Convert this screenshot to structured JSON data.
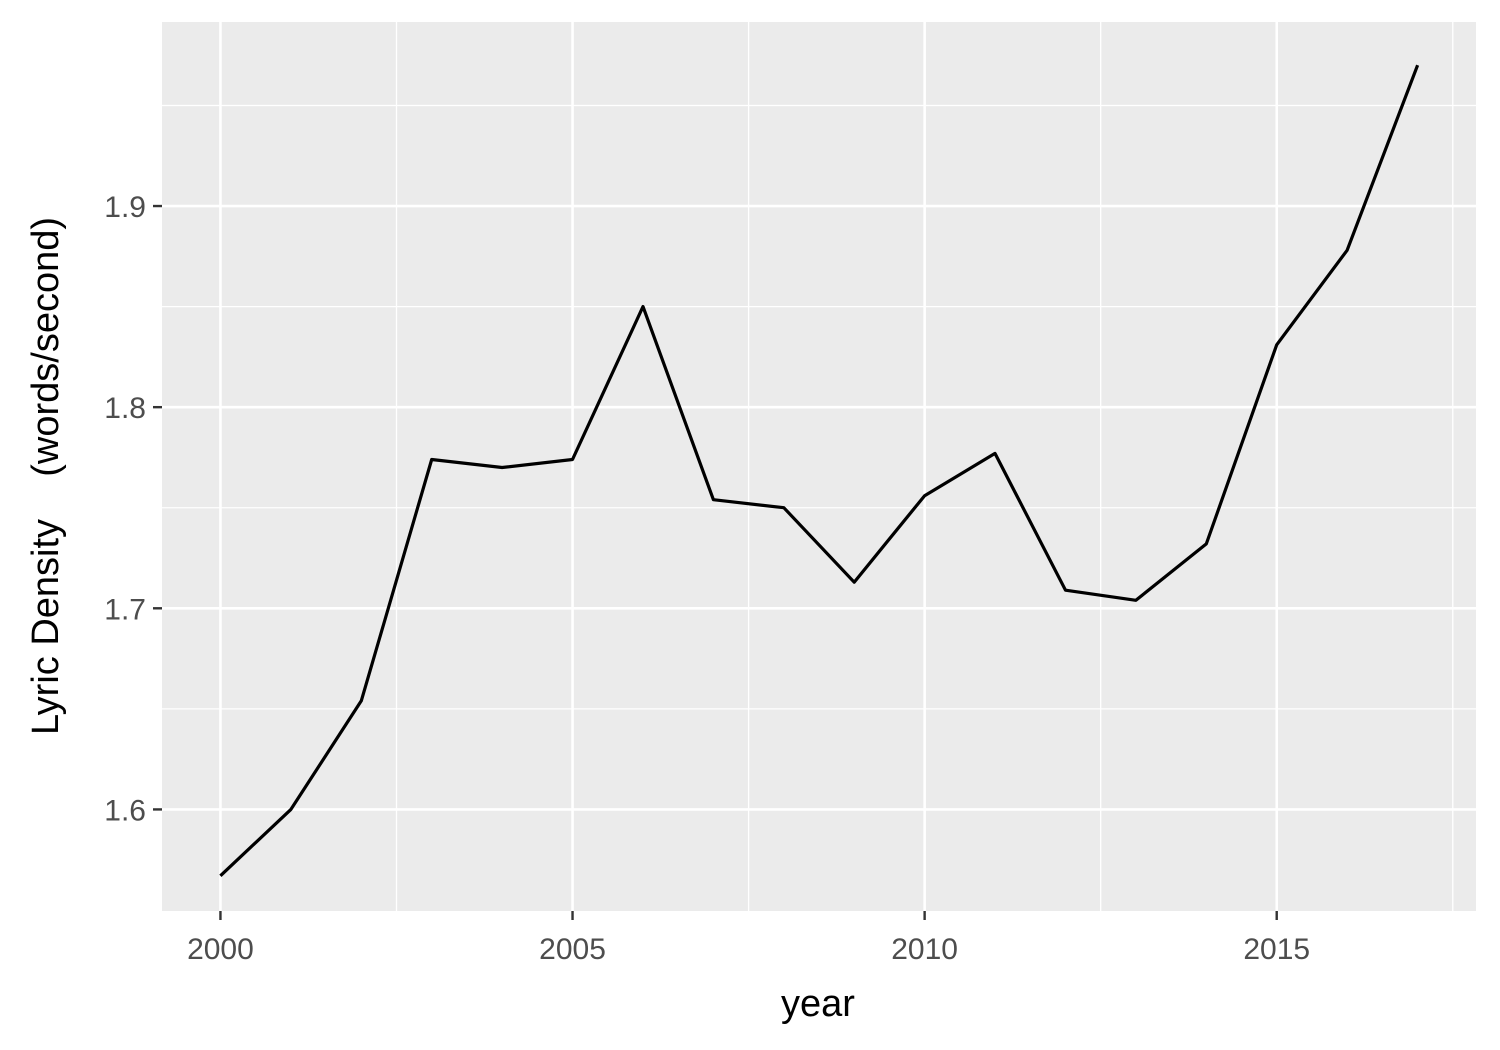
{
  "chart_data": {
    "type": "line",
    "title": "",
    "xlabel": "year",
    "ylabel": "Lyric Density    (words/second)",
    "x": [
      2000,
      2001,
      2002,
      2003,
      2004,
      2005,
      2006,
      2007,
      2008,
      2009,
      2010,
      2011,
      2012,
      2013,
      2014,
      2015,
      2016,
      2017
    ],
    "series": [
      {
        "values": [
          1.567,
          1.6,
          1.654,
          1.774,
          1.77,
          1.774,
          1.85,
          1.754,
          1.75,
          1.713,
          1.756,
          1.777,
          1.709,
          1.704,
          1.732,
          1.831,
          1.878,
          1.97
        ],
        "color": "#000000"
      }
    ],
    "xlim": [
      1999.17,
      2017.83
    ],
    "ylim": [
      1.5495,
      1.9915
    ],
    "x_ticks": [
      2000,
      2005,
      2010,
      2015
    ],
    "x_tick_labels": [
      "2000",
      "2005",
      "2010",
      "2015"
    ],
    "x_minor_ticks": [
      2002.5,
      2007.5,
      2012.5,
      2017.5
    ],
    "y_ticks": [
      1.6,
      1.7,
      1.8,
      1.9
    ],
    "y_tick_labels": [
      "1.6",
      "1.7",
      "1.8",
      "1.9"
    ],
    "y_minor_ticks": [
      1.65,
      1.75,
      1.85,
      1.95
    ],
    "grid": true,
    "legend": "none",
    "colors": {
      "panel_background": "#ebebeb",
      "grid_major": "#ffffff",
      "grid_minor": "#ffffff",
      "line": "#000000",
      "tick_text": "#4d4d4d",
      "axis_title": "#000000"
    }
  }
}
